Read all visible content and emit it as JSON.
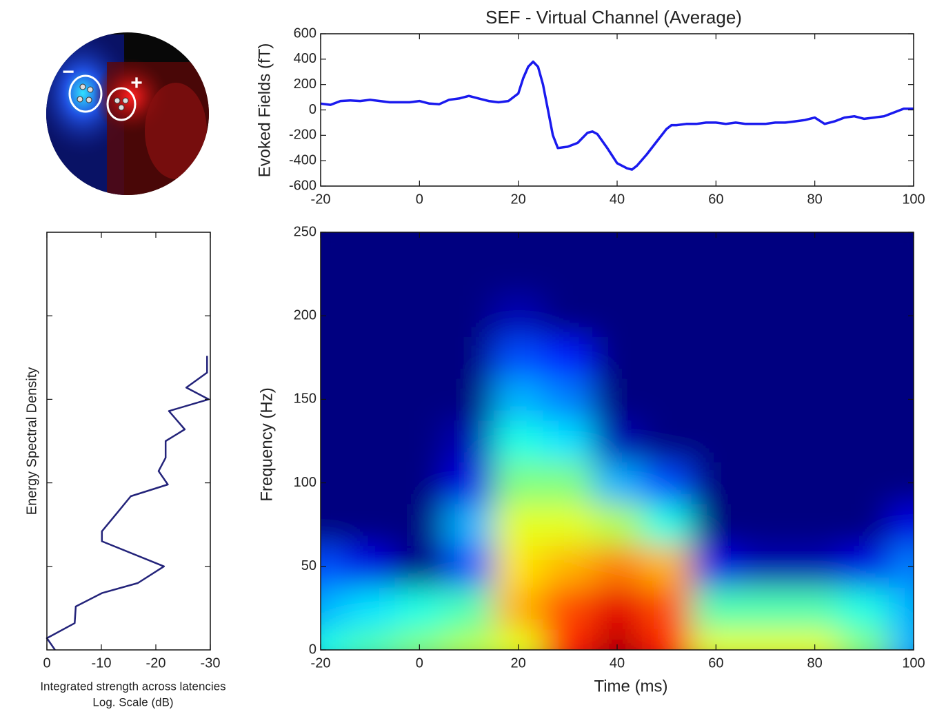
{
  "topomap": {
    "minus_label": "−",
    "plus_label": "+"
  },
  "chart_data": [
    {
      "type": "line",
      "title": "SEF - Virtual Channel (Average)",
      "ylabel": "Evoked Fields (fT)",
      "color": "#1a1aee",
      "x": [
        -20,
        -18,
        -16,
        -14,
        -12,
        -10,
        -8,
        -6,
        -4,
        -2,
        0,
        2,
        4,
        6,
        8,
        10,
        12,
        14,
        16,
        18,
        20,
        21,
        22,
        23,
        24,
        25,
        26,
        27,
        28,
        30,
        32,
        34,
        35,
        36,
        38,
        40,
        42,
        43,
        44,
        46,
        48,
        50,
        51,
        52,
        54,
        56,
        58,
        60,
        62,
        64,
        66,
        68,
        70,
        72,
        74,
        76,
        78,
        80,
        82,
        84,
        86,
        88,
        90,
        92,
        94,
        96,
        98,
        100
      ],
      "values": [
        50,
        40,
        70,
        75,
        70,
        80,
        70,
        60,
        60,
        60,
        70,
        50,
        45,
        80,
        90,
        110,
        90,
        70,
        60,
        70,
        130,
        250,
        340,
        380,
        340,
        200,
        0,
        -200,
        -300,
        -290,
        -260,
        -180,
        -170,
        -190,
        -300,
        -420,
        -460,
        -470,
        -440,
        -350,
        -250,
        -150,
        -120,
        -120,
        -110,
        -110,
        -100,
        -100,
        -110,
        -100,
        -110,
        -110,
        -110,
        -100,
        -100,
        -90,
        -80,
        -60,
        -110,
        -90,
        -60,
        -50,
        -70,
        -60,
        -50,
        -20,
        10,
        10
      ],
      "xlim": [
        -20,
        100
      ],
      "xticks": [
        -20,
        0,
        20,
        40,
        60,
        80,
        100
      ],
      "ylim": [
        -600,
        600
      ],
      "yticks": [
        -600,
        -400,
        -200,
        0,
        200,
        400,
        600
      ]
    },
    {
      "type": "line",
      "ylabel": "Energy Spectral Density",
      "xlabel": [
        "Integrated strength across latencies",
        "Log. Scale (dB)"
      ],
      "color": "#23237a",
      "x": [
        -29.4,
        -29.4,
        -25.6,
        -29.7,
        -22.4,
        -25.3,
        -21.8,
        -21.8,
        -20.5,
        -22.2,
        -15.4,
        -12.9,
        -10.1,
        -10.1,
        -21.5,
        -16.7,
        -10.1,
        -5.3,
        -5.1,
        0,
        -1.5
      ],
      "y": [
        176,
        166,
        157,
        150,
        143,
        132,
        125,
        115,
        107,
        99,
        92,
        82,
        71,
        65,
        50,
        40,
        34,
        26,
        16,
        7,
        0
      ],
      "xlim": [
        0,
        -30
      ],
      "xticks": [
        0,
        -10,
        -20,
        -30
      ],
      "ylim": [
        0,
        250
      ],
      "yticks": [
        50,
        100,
        150,
        200
      ],
      "show_ytick_labels": false
    },
    {
      "type": "heatmap",
      "xlabel": "Time (ms)",
      "ylabel": "Frequency (Hz)",
      "colormap": "jet",
      "zlim": [
        0,
        1
      ],
      "x": [
        -20,
        -10,
        0,
        10,
        20,
        30,
        40,
        50,
        60,
        70,
        80,
        90,
        100
      ],
      "y": [
        0,
        25,
        50,
        75,
        100,
        125,
        150,
        175,
        200,
        225,
        250
      ],
      "z": [
        [
          0.4,
          0.45,
          0.5,
          0.55,
          0.6,
          0.85,
          0.95,
          0.85,
          0.6,
          0.6,
          0.6,
          0.5,
          0.3
        ],
        [
          0.3,
          0.35,
          0.4,
          0.45,
          0.7,
          0.8,
          0.9,
          0.8,
          0.45,
          0.45,
          0.45,
          0.4,
          0.3
        ],
        [
          0.2,
          0.1,
          0,
          0.2,
          0.65,
          0.7,
          0.75,
          0.7,
          0.1,
          0.05,
          0.05,
          0.1,
          0.25
        ],
        [
          0,
          0,
          0,
          0.3,
          0.6,
          0.6,
          0.55,
          0.4,
          0,
          0,
          0,
          0,
          0.1
        ],
        [
          0,
          0,
          0,
          0.1,
          0.5,
          0.5,
          0.3,
          0.2,
          0,
          0,
          0,
          0,
          0
        ],
        [
          0,
          0,
          0,
          0.05,
          0.4,
          0.35,
          0.05,
          0,
          0,
          0,
          0,
          0,
          0
        ],
        [
          0,
          0,
          0,
          0,
          0.3,
          0.25,
          0,
          0,
          0,
          0,
          0,
          0,
          0
        ],
        [
          0,
          0,
          0,
          0,
          0.2,
          0.15,
          0,
          0,
          0,
          0,
          0,
          0,
          0
        ],
        [
          0,
          0,
          0,
          0,
          0.05,
          0,
          0,
          0,
          0,
          0,
          0,
          0,
          0
        ],
        [
          0,
          0,
          0,
          0,
          0,
          0,
          0,
          0,
          0,
          0,
          0,
          0,
          0
        ],
        [
          0,
          0,
          0,
          0,
          0,
          0,
          0,
          0,
          0,
          0,
          0,
          0,
          0
        ]
      ],
      "xlim": [
        -20,
        100
      ],
      "xticks": [
        -20,
        0,
        20,
        40,
        60,
        80,
        100
      ],
      "ylim": [
        0,
        250
      ],
      "yticks": [
        0,
        50,
        100,
        150,
        200,
        250
      ]
    }
  ]
}
